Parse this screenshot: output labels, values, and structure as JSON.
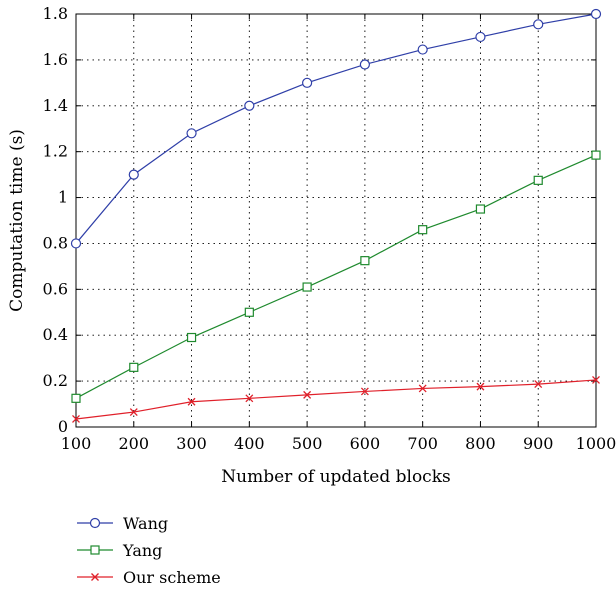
{
  "chart_data": {
    "type": "line",
    "title": "",
    "xlabel": "Number of updated blocks",
    "ylabel": "Computation time (s)",
    "x": [
      100,
      200,
      300,
      400,
      500,
      600,
      700,
      800,
      900,
      1000
    ],
    "xlim": [
      100,
      1000
    ],
    "ylim": [
      0,
      1.8
    ],
    "xticks": [
      "100",
      "200",
      "300",
      "400",
      "500",
      "600",
      "700",
      "800",
      "900",
      "1000"
    ],
    "yticks": [
      "0",
      "0.2",
      "0.4",
      "0.6",
      "0.8",
      "1",
      "1.2",
      "1.4",
      "1.6",
      "1.8"
    ],
    "grid": true,
    "legend_position": "bottom-left, below plot",
    "series": [
      {
        "name": "Wang",
        "color": "#2f3fa8",
        "marker": "circle",
        "values": [
          0.8,
          1.1,
          1.28,
          1.4,
          1.5,
          1.58,
          1.645,
          1.7,
          1.755,
          1.8
        ]
      },
      {
        "name": "Yang",
        "color": "#1f8a2e",
        "marker": "square",
        "values": [
          0.125,
          0.26,
          0.39,
          0.5,
          0.61,
          0.725,
          0.86,
          0.95,
          1.075,
          1.185
        ]
      },
      {
        "name": "Our scheme",
        "color": "#e0202a",
        "marker": "cross",
        "values": [
          0.035,
          0.065,
          0.11,
          0.125,
          0.14,
          0.155,
          0.168,
          0.176,
          0.187,
          0.205
        ]
      }
    ]
  }
}
